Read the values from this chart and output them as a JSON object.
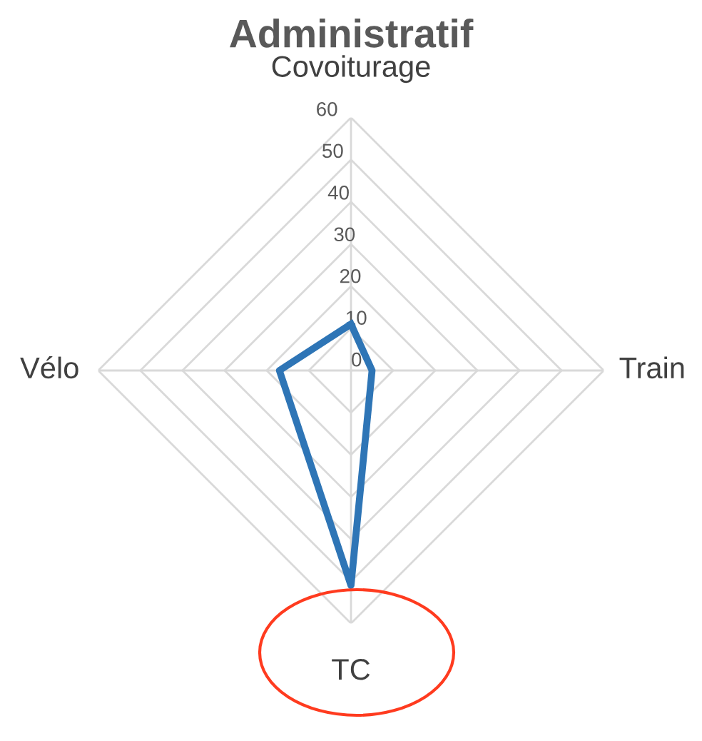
{
  "chart_data": {
    "type": "radar",
    "title": "Administratif",
    "categories": [
      "Covoiturage",
      "Train",
      "TC",
      "Vélo"
    ],
    "series": [
      {
        "color": "#2e75b6",
        "values": [
          11,
          5,
          51,
          17
        ]
      }
    ],
    "ylim": [
      0,
      60
    ],
    "yticks": [
      0,
      10,
      20,
      30,
      40,
      50,
      60
    ],
    "grid": true,
    "marker": "none",
    "line_style": "solid"
  }
}
